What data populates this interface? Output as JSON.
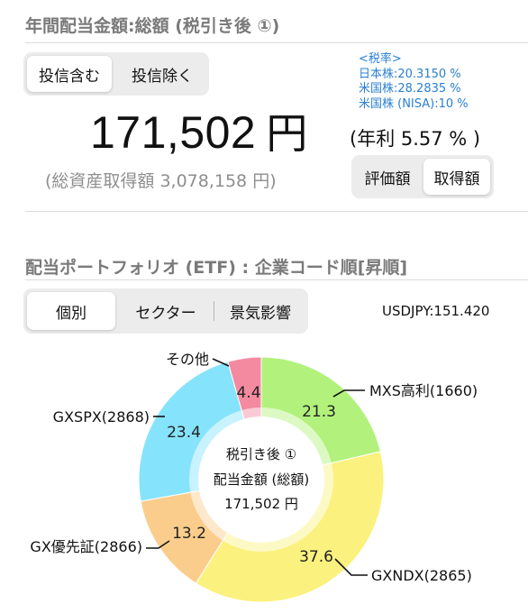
{
  "header": {
    "title": "年間配当金額:総額 (税引き後 ①)"
  },
  "fund_toggle": {
    "include": "投信含む",
    "exclude": "投信除く",
    "active": "include"
  },
  "tax_rates": {
    "heading": "<税率>",
    "jp": "日本株:20.3150 %",
    "us": "米国株:28.2835 %",
    "nisa": "米国株 (NISA):10 %"
  },
  "dividend": {
    "amount": "171,502",
    "unit": "円",
    "yield_text": "(年利 5.57 % )",
    "cost_text": "(総資産取得額 3,078,158 円)"
  },
  "valuation_toggle": {
    "eval": "評価額",
    "cost": "取得額",
    "active": "cost"
  },
  "portfolio": {
    "title": "配当ポートフォリオ (ETF) : 企業コード順[昇順]",
    "tabs": [
      "個別",
      "セクター",
      "景気影響"
    ],
    "active_tab": 0,
    "fx_rate": "USDJPY:151.420"
  },
  "chart_data": {
    "type": "pie",
    "donut": true,
    "slices": [
      {
        "name": "MXS高利(1660)",
        "value": 21.3,
        "label": "21.3",
        "color": "#b2f27c"
      },
      {
        "name": "GXNDX(2865)",
        "value": 37.6,
        "label": "37.6",
        "color": "#fbf17e"
      },
      {
        "name": "GX優先証(2866)",
        "value": 13.2,
        "label": "13.2",
        "color": "#fbcd8c"
      },
      {
        "name": "GXSPX(2868)",
        "value": 23.4,
        "label": "23.4",
        "color": "#86e3fc"
      },
      {
        "name": "その他",
        "value": 4.4,
        "label": "4.4",
        "color": "#f48aa0"
      }
    ],
    "center": {
      "line1": "税引き後 ①",
      "line2": "配当金額 (総額)",
      "line3": "171,502 円"
    }
  }
}
